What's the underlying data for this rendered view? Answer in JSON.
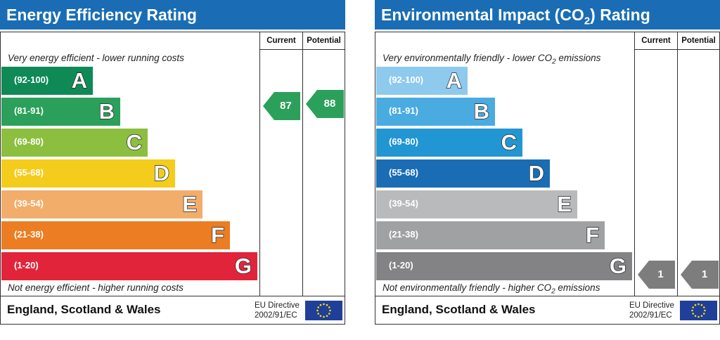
{
  "energy": {
    "title": "Energy Efficiency Rating",
    "col_current": "Current",
    "col_potential": "Potential",
    "caption_top": "Very energy efficient - lower running costs",
    "caption_bottom": "Not energy efficient - higher running costs",
    "footer_region": "England, Scotland & Wales",
    "directive_line1": "EU Directive",
    "directive_line2": "2002/91/EC",
    "current_value": "87",
    "potential_value": "88",
    "current_color": "#2ba05a",
    "potential_color": "#2ba05a",
    "bands": [
      {
        "range": "(92-100)",
        "letter": "A",
        "color": "#0f8a57"
      },
      {
        "range": "(81-91)",
        "letter": "B",
        "color": "#2ba05a"
      },
      {
        "range": "(69-80)",
        "letter": "C",
        "color": "#8cbf3f"
      },
      {
        "range": "(55-68)",
        "letter": "D",
        "color": "#f4cc1c"
      },
      {
        "range": "(39-54)",
        "letter": "E",
        "color": "#f3ad6b"
      },
      {
        "range": "(21-38)",
        "letter": "F",
        "color": "#ec7d22"
      },
      {
        "range": "(1-20)",
        "letter": "G",
        "color": "#e2243b"
      }
    ]
  },
  "environment": {
    "title_pre": "Environmental Impact (CO",
    "title_sub": "2",
    "title_post": ") Rating",
    "col_current": "Current",
    "col_potential": "Potential",
    "caption_top_pre": "Very environmentally friendly - lower CO",
    "caption_top_sub": "2",
    "caption_top_post": " emissions",
    "caption_bottom_pre": "Not environmentally friendly - higher CO",
    "caption_bottom_sub": "2",
    "caption_bottom_post": " emissions",
    "footer_region": "England, Scotland & Wales",
    "directive_line1": "EU Directive",
    "directive_line2": "2002/91/EC",
    "current_value": "1",
    "potential_value": "1",
    "current_color": "#7d7d7d",
    "potential_color": "#7d7d7d",
    "bands": [
      {
        "range": "(92-100)",
        "letter": "A",
        "color": "#8ec9ee"
      },
      {
        "range": "(81-91)",
        "letter": "B",
        "color": "#4aabe0"
      },
      {
        "range": "(69-80)",
        "letter": "C",
        "color": "#2296d2"
      },
      {
        "range": "(55-68)",
        "letter": "D",
        "color": "#1a6db4"
      },
      {
        "range": "(39-54)",
        "letter": "E",
        "color": "#b9babc"
      },
      {
        "range": "(21-38)",
        "letter": "F",
        "color": "#a0a1a3"
      },
      {
        "range": "(1-20)",
        "letter": "G",
        "color": "#838385"
      }
    ]
  },
  "chart_data": [
    {
      "type": "table",
      "title": "Energy Efficiency Rating",
      "categories": [
        "A",
        "B",
        "C",
        "D",
        "E",
        "F",
        "G"
      ],
      "ranges": [
        "(92-100)",
        "(81-91)",
        "(69-80)",
        "(55-68)",
        "(39-54)",
        "(21-38)",
        "(1-20)"
      ],
      "current": 87,
      "potential": 88
    },
    {
      "type": "table",
      "title": "Environmental Impact (CO2) Rating",
      "categories": [
        "A",
        "B",
        "C",
        "D",
        "E",
        "F",
        "G"
      ],
      "ranges": [
        "(92-100)",
        "(81-91)",
        "(69-80)",
        "(55-68)",
        "(39-54)",
        "(21-38)",
        "(1-20)"
      ],
      "current": 1,
      "potential": 1
    }
  ]
}
